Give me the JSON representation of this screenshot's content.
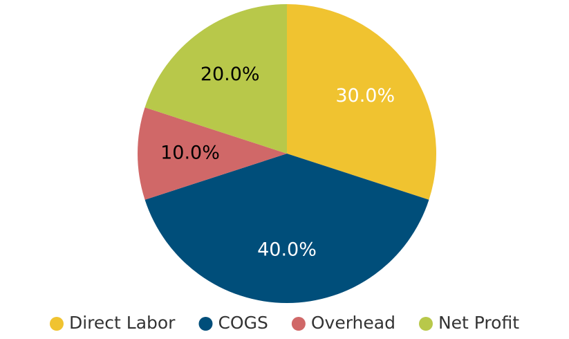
{
  "chart_data": {
    "type": "pie",
    "categories": [
      "Direct Labor",
      "COGS",
      "Overhead",
      "Net Profit"
    ],
    "values": [
      30,
      40,
      10,
      20
    ],
    "value_labels": [
      "30.0%",
      "40.0%",
      "10.0%",
      "20.0%"
    ],
    "colors": [
      "#f0c330",
      "#004e7a",
      "#d06868",
      "#b8c84a"
    ],
    "label_colors": [
      "#ffffff",
      "#ffffff",
      "#000000",
      "#000000"
    ],
    "legend": "bottom"
  }
}
